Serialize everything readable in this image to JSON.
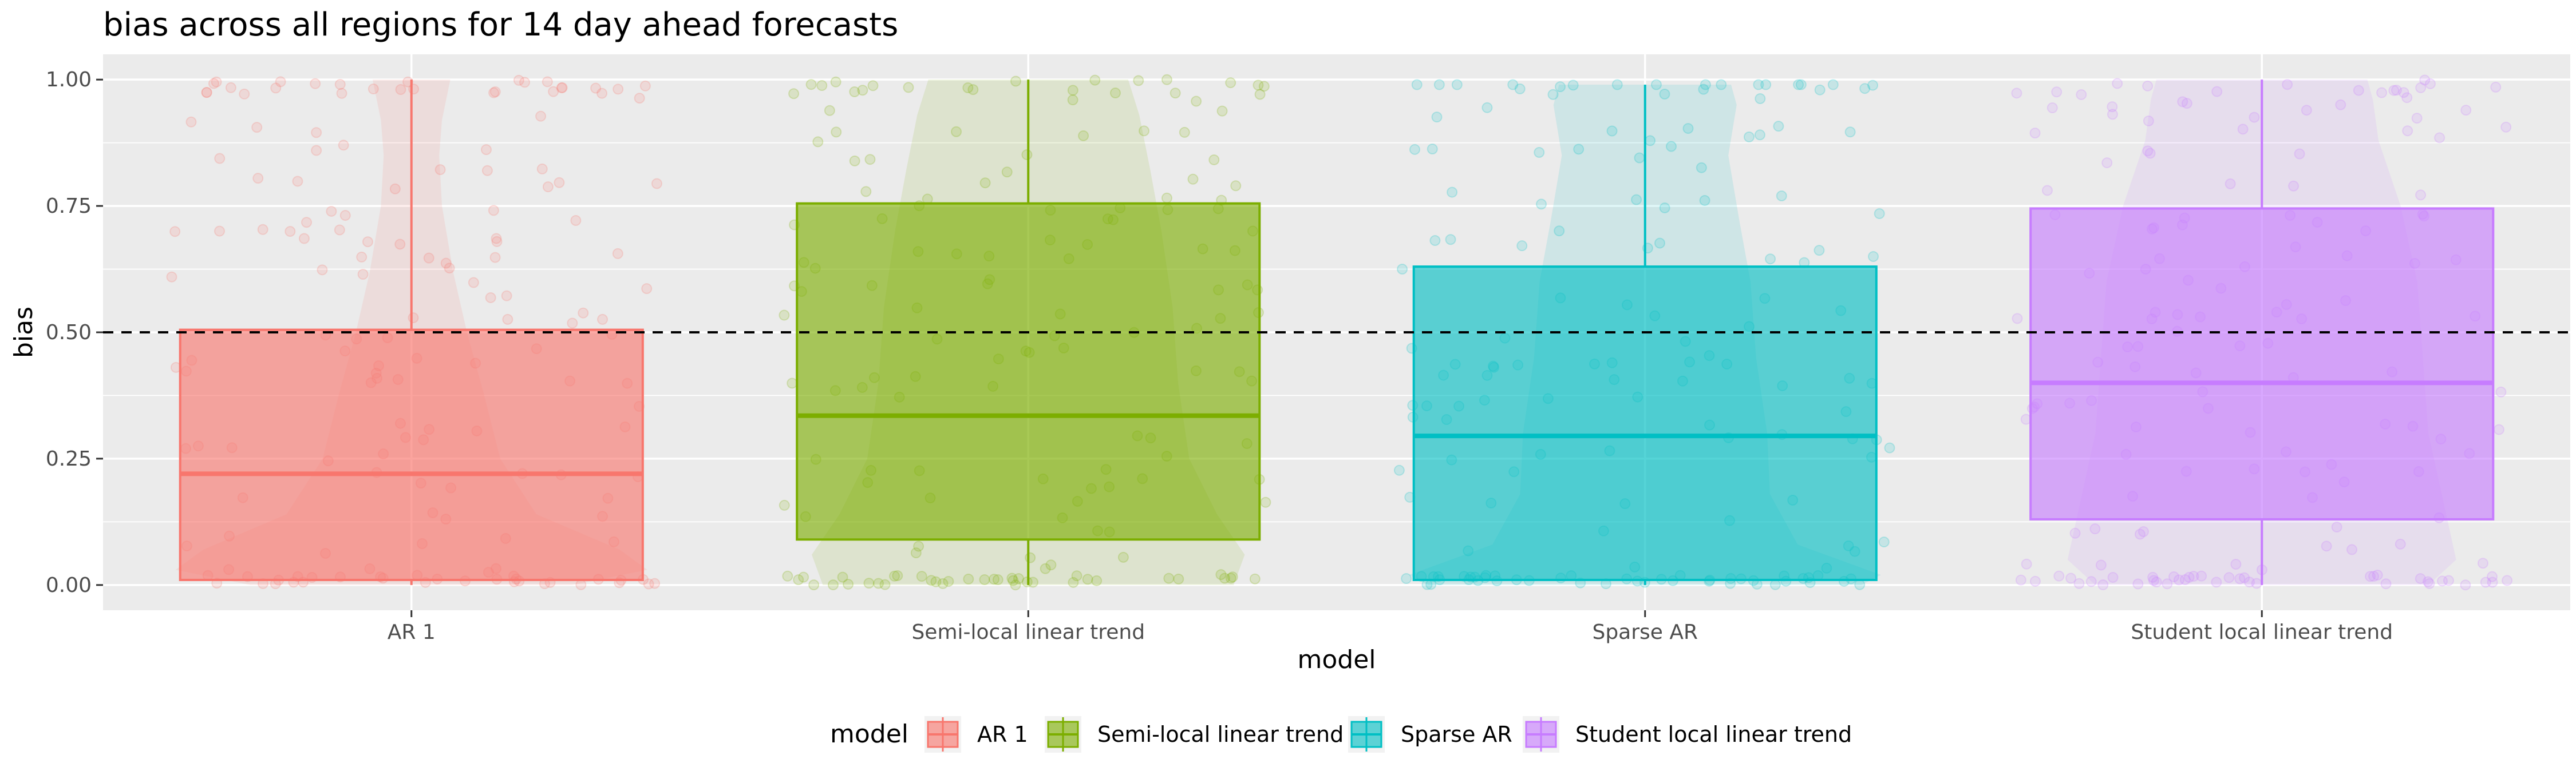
{
  "chart_data": {
    "type": "boxplot",
    "title": "bias across all regions for 14 day ahead forecasts",
    "xlabel": "model",
    "ylabel": "bias",
    "ylim": [
      -0.05,
      1.05
    ],
    "yticks": [
      "0.00",
      "0.25",
      "0.50",
      "0.75",
      "1.00"
    ],
    "ytick_values": [
      0,
      0.25,
      0.5,
      0.75,
      1.0
    ],
    "reference_line": 0.5,
    "categories": [
      "AR 1",
      "Semi-local linear trend",
      "Sparse AR",
      "Student local linear trend"
    ],
    "series": [
      {
        "name": "AR 1",
        "color": "#F8766D",
        "min": 0.0,
        "q1": 0.01,
        "median": 0.22,
        "q3": 0.505,
        "max": 1.0
      },
      {
        "name": "Semi-local linear trend",
        "color": "#7CAE00",
        "min": 0.0,
        "q1": 0.09,
        "median": 0.335,
        "q3": 0.755,
        "max": 1.0
      },
      {
        "name": "Sparse AR",
        "color": "#00BFC4",
        "min": 0.0,
        "q1": 0.01,
        "median": 0.295,
        "q3": 0.63,
        "max": 0.99
      },
      {
        "name": "Student local linear trend",
        "color": "#C77CFF",
        "min": 0.0,
        "q1": 0.13,
        "median": 0.4,
        "q3": 0.745,
        "max": 1.0
      }
    ],
    "grid": true,
    "legend": {
      "title": "model",
      "position": "bottom"
    }
  }
}
